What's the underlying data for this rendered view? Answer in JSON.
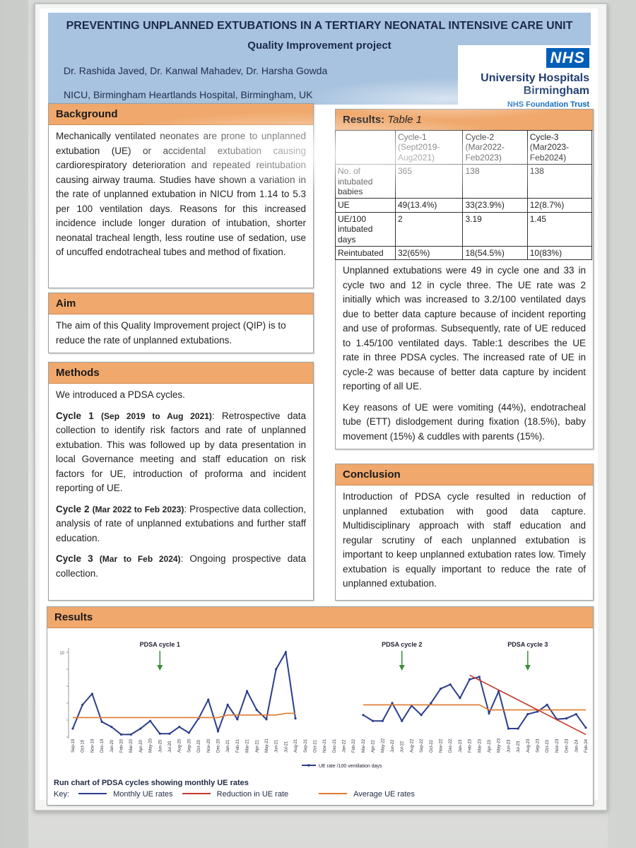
{
  "header": {
    "title": "PREVENTING UNPLANNED EXTUBATIONS IN A TERTIARY NEONATAL INTENSIVE CARE UNIT",
    "subtitle": "Quality Improvement project",
    "authors": "Dr. Rashida Javed, Dr. Kanwal Mahadev, Dr. Harsha Gowda",
    "affiliation": "NICU, Birmingham Heartlands Hospital, Birmingham, UK",
    "logo_nhs": "NHS",
    "logo_line1": "University Hospitals",
    "logo_line2": "Birmingham",
    "logo_line3": "NHS Foundation Trust"
  },
  "background": {
    "heading": "Background",
    "text": "Mechanically ventilated neonates are prone to unplanned extubation (UE) or accidental extubation causing cardiorespiratory deterioration and repeated reintubation causing airway trauma. Studies have shown a variation in the rate of unplanned extubation in NICU from 1.14 to 5.3 per 100 ventilation days. Reasons for this increased incidence include longer duration of intubation, shorter neonatal tracheal length, less routine use of sedation, use of uncuffed endotracheal tubes and method of fixation."
  },
  "aim": {
    "heading": "Aim",
    "text": "The aim of this Quality Improvement project (QIP) is to reduce the rate of unplanned extubations."
  },
  "methods": {
    "heading": "Methods",
    "intro": "We introduced a PDSA cycles.",
    "cycle1_label": "Cycle 1",
    "cycle1_dates": "(Sep 2019 to Aug 2021)",
    "cycle1_text": ": Retrospective data collection to identify risk factors and rate of unplanned extubation. This was followed up by data presentation in local Governance meeting and staff education on risk factors for UE, introduction of proforma and incident reporting of UE.",
    "cycle2_label": "Cycle 2",
    "cycle2_dates": "(Mar 2022 to Feb 2023)",
    "cycle2_text": ": Prospective data collection, analysis of rate of unplanned extubations and further staff education.",
    "cycle3_label": "Cycle 3",
    "cycle3_dates": "(Mar to Feb 2024)",
    "cycle3_text": ": Ongoing prospective data collection."
  },
  "results_table": {
    "heading": "Results:",
    "heading_italic": "Table 1",
    "columns": [
      "",
      "Cycle-1 (Sept2019-Aug2021)",
      "Cycle-2 (Mar2022-Feb2023)",
      "Cycle-3 (Mar2023-Feb2024)"
    ],
    "rows": [
      [
        "No. of intubated babies",
        "365",
        "138",
        "138"
      ],
      [
        "UE",
        "49(13.4%)",
        "33(23.9%)",
        "12(8.7%)"
      ],
      [
        "UE/100 intubated days",
        "2",
        "3.19",
        "1.45"
      ],
      [
        "Reintubated",
        "32(65%)",
        "18(54.5%)",
        "10(83%)"
      ]
    ],
    "para1": "Unplanned extubations were 49 in cycle one and 33 in cycle two and 12 in cycle three. The UE rate was 2 initially which was increased to 3.2/100 ventilated days due to better data capture because of incident reporting and use of proformas. Subsequently, rate of UE reduced to 1.45/100 ventilated days. Table:1 describes the UE rate in three PDSA cycles. The increased rate of UE in cycle-2 was because of better data capture by incident reporting of all UE.",
    "para2": "Key reasons of UE were vomiting (44%), endotracheal tube (ETT) dislodgement during fixation (18.5%), baby movement (15%) & cuddles with parents (15%)."
  },
  "conclusion": {
    "heading": "Conclusion",
    "text": "Introduction of PDSA cycle resulted in reduction of unplanned extubation with good data capture. Multidisciplinary approach with staff education and regular scrutiny of each unplanned extubation is important to keep unplanned extubation rates low. Timely extubation is equally important to reduce the rate of unplanned extubation."
  },
  "results_chart": {
    "heading": "Results",
    "caption": "Run chart of PDSA cycles showing monthly UE rates",
    "key_label": "Key:",
    "key_monthly": "Monthly UE rates",
    "key_reduction": "Reduction in UE rate",
    "key_average": "Average UE rates",
    "colors": {
      "monthly": "#2c3e8c",
      "reduction": "#c0392b",
      "average": "#e07a2c",
      "arrow": "#3c8c3c"
    }
  },
  "chart_data": {
    "type": "line",
    "x": [
      "Sep-19",
      "Oct-19",
      "Nov-19",
      "Dec-19",
      "Jan-20",
      "Feb-20",
      "Mar-20",
      "Apr-20",
      "May-20",
      "Jun-20",
      "Jul-20",
      "Aug-20",
      "Sep-20",
      "Oct-20",
      "Nov-20",
      "Dec-20",
      "Jan-21",
      "Feb-21",
      "Mar-21",
      "Apr-21",
      "May-21",
      "Jun-21",
      "Jul-21",
      "Aug-21",
      "Sep-21",
      "Oct-21",
      "Nov-21",
      "Dec-21",
      "Jan-22",
      "Feb-22",
      "Mar-22",
      "Apr-22",
      "May-22",
      "Jun-22",
      "Jul-22",
      "Aug-22",
      "Sep-22",
      "Oct-22",
      "Nov-22",
      "Dec-22",
      "Jan-23",
      "Feb-23",
      "Mar-23",
      "Apr-23",
      "May-23",
      "Jun-23",
      "Jul-23",
      "Aug-23",
      "Sep-23",
      "Oct-23",
      "Nov-23",
      "Dec-23",
      "Jan-24",
      "Feb-24"
    ],
    "series": [
      {
        "name": "UE rate /100 ventilation days",
        "values": [
          1,
          3.8,
          5.1,
          1.8,
          1.2,
          0.3,
          0.3,
          1,
          1.9,
          0.4,
          0.4,
          1.2,
          0.5,
          2.2,
          4.4,
          0.7,
          3.8,
          2.1,
          5.4,
          3.2,
          2.1,
          8,
          10,
          2.2,
          null,
          null,
          null,
          null,
          null,
          null,
          2.6,
          1.9,
          1.9,
          4,
          1.9,
          3.7,
          2.6,
          4,
          5.7,
          6.2,
          4.6,
          6.8,
          7.1,
          2.8,
          5.4,
          1,
          1,
          2.7,
          3,
          3.8,
          2.1,
          2.2,
          2.7,
          1.1
        ]
      },
      {
        "name": "Average UE rates",
        "values": [
          2.3,
          2.3,
          2.3,
          2.3,
          2.3,
          2.3,
          2.3,
          2.3,
          2.3,
          2.3,
          2.3,
          2.3,
          2.3,
          2.3,
          2.3,
          2.3,
          2.6,
          2.6,
          2.6,
          2.6,
          2.6,
          2.6,
          2.8,
          2.8,
          null,
          null,
          null,
          null,
          null,
          null,
          3.8,
          3.8,
          3.8,
          3.8,
          3.8,
          3.8,
          3.8,
          3.8,
          3.8,
          3.8,
          3.8,
          3.8,
          3.8,
          3.2,
          3.2,
          3.2,
          3.2,
          3.2,
          3.2,
          3.2,
          3.2,
          3.2,
          3.2,
          3.2
        ]
      }
    ],
    "trend": {
      "name": "Reduction in UE rate",
      "from": [
        "Feb-23",
        7.3
      ],
      "to": [
        "Feb-24",
        0.3
      ]
    },
    "annotations": [
      {
        "label": "PDSA cycle 1",
        "at": "Jun-20"
      },
      {
        "label": "PDSA cycle 2",
        "at": "Jul-22"
      },
      {
        "label": "PDSA cycle 3",
        "at": "Aug-23"
      }
    ],
    "ylim": [
      0,
      10
    ],
    "yticks": [
      "",
      "",
      "",
      "",
      "",
      "10"
    ],
    "legend": "bottom",
    "xlabel": "",
    "ylabel": ""
  }
}
